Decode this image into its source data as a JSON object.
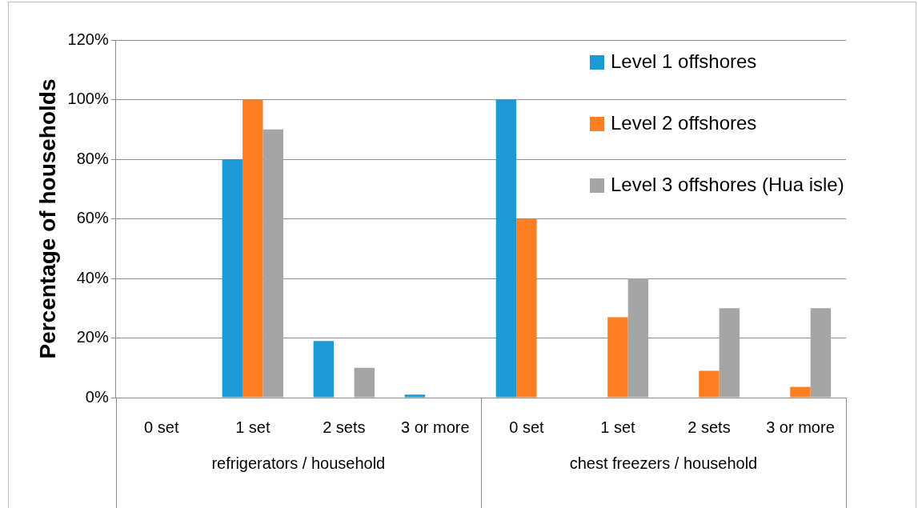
{
  "chart_data": {
    "type": "bar",
    "ylabel": "Percentage of households",
    "categories": [
      "0 set",
      "1 set",
      "2 sets",
      "3 or more",
      "0 set",
      "1 set",
      "2 sets",
      "3 or more"
    ],
    "series": [
      {
        "name": "Level 1 offshores",
        "color": "#1b9ad6",
        "values": [
          0,
          80,
          19,
          1,
          100,
          0,
          0,
          0
        ]
      },
      {
        "name": "Level 2 offshores",
        "color": "#fe7f22",
        "values": [
          0,
          100,
          0,
          0,
          60,
          27,
          9,
          3.6
        ]
      },
      {
        "name": "Level 3 offshores (Hua isle)",
        "color": "#a5a5a5",
        "values": [
          0,
          90,
          10,
          0,
          0,
          40,
          30,
          30
        ]
      }
    ],
    "ylim": [
      0,
      120
    ],
    "yticks": [
      {
        "value": 0,
        "label": "0%"
      },
      {
        "value": 20,
        "label": "20%"
      },
      {
        "value": 40,
        "label": "40%"
      },
      {
        "value": 60,
        "label": "60%"
      },
      {
        "value": 80,
        "label": "80%"
      },
      {
        "value": 100,
        "label": "100%"
      },
      {
        "value": 120,
        "label": "120%"
      }
    ],
    "annotations": [
      "refrigerators / household",
      "chest freezers / household"
    ],
    "grid": "y",
    "legend": "top right"
  }
}
